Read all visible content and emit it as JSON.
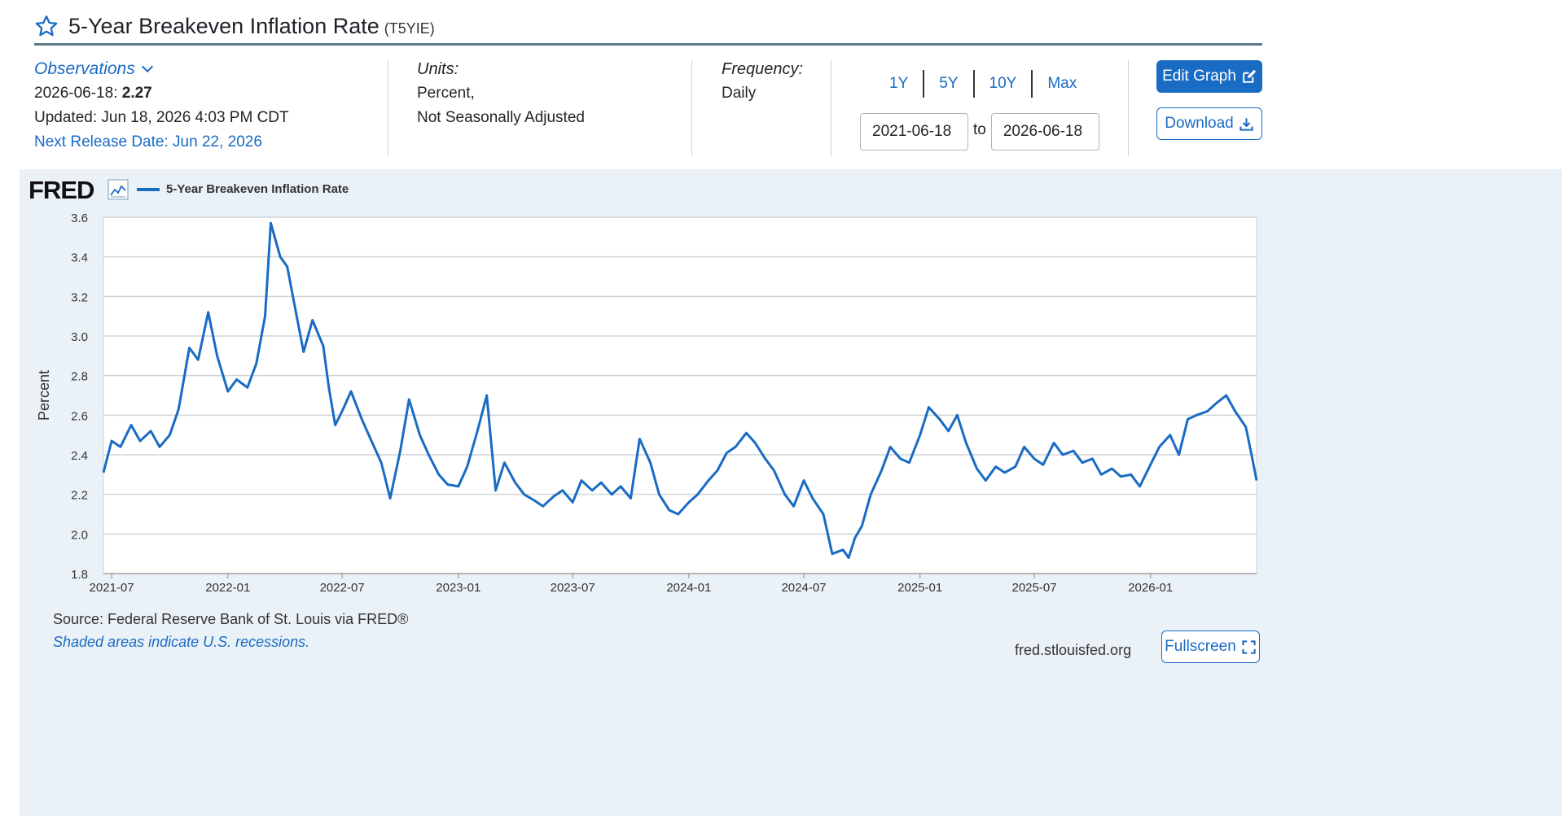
{
  "header": {
    "title": "5-Year Breakeven Inflation Rate",
    "series_id": "(T5YIE)"
  },
  "observations": {
    "toggle_label": "Observations",
    "date": "2026-06-18",
    "value": "2.27",
    "updated": "Updated: Jun 18, 2026 4:03 PM CDT",
    "next_release": "Next Release Date: Jun 22, 2026"
  },
  "units": {
    "label": "Units:",
    "line1": "Percent,",
    "line2": "Not Seasonally Adjusted"
  },
  "frequency": {
    "label": "Frequency:",
    "value": "Daily"
  },
  "range": {
    "buttons": [
      "1Y",
      "5Y",
      "10Y",
      "Max"
    ],
    "start": "2021-06-18",
    "to_label": "to",
    "end": "2026-06-18"
  },
  "actions": {
    "edit_graph": "Edit Graph",
    "download": "Download",
    "fullscreen": "Fullscreen"
  },
  "chart_panel": {
    "logo": "FRED",
    "source": "Source: Federal Reserve Bank of St. Louis via FRED®",
    "shaded_note": "Shaded areas indicate U.S. recessions.",
    "site": "fred.stlouisfed.org"
  },
  "colors": {
    "accent": "#1a6bc4",
    "series": "#1a6bc4",
    "panel_bg": "#eaf2f8",
    "header_rule": "#5d7a8a"
  },
  "chart_data": {
    "type": "line",
    "title": "",
    "ylabel": "Percent",
    "xlabel": "",
    "ylim": [
      1.8,
      3.6
    ],
    "y_ticks": [
      "1.8",
      "2.0",
      "2.2",
      "2.4",
      "2.6",
      "2.8",
      "3.0",
      "3.2",
      "3.4",
      "3.6"
    ],
    "x_ticks": [
      "2021-07",
      "2022-01",
      "2022-07",
      "2023-01",
      "2023-07",
      "2024-01",
      "2024-07",
      "2025-01",
      "2025-07",
      "2026-01"
    ],
    "xlim": [
      "2021-06-18",
      "2026-06-18"
    ],
    "grid": true,
    "legend": "top-left",
    "series": [
      {
        "name": "5-Year Breakeven Inflation Rate",
        "x": [
          "2021-06-18",
          "2021-07-01",
          "2021-07-15",
          "2021-08-01",
          "2021-08-15",
          "2021-09-01",
          "2021-09-15",
          "2021-10-01",
          "2021-10-15",
          "2021-11-01",
          "2021-11-15",
          "2021-12-01",
          "2021-12-15",
          "2022-01-01",
          "2022-01-15",
          "2022-02-01",
          "2022-02-15",
          "2022-03-01",
          "2022-03-10",
          "2022-03-25",
          "2022-04-05",
          "2022-04-20",
          "2022-05-01",
          "2022-05-15",
          "2022-06-01",
          "2022-06-10",
          "2022-06-20",
          "2022-07-01",
          "2022-07-15",
          "2022-08-01",
          "2022-08-15",
          "2022-09-01",
          "2022-09-15",
          "2022-10-01",
          "2022-10-15",
          "2022-11-01",
          "2022-11-15",
          "2022-12-01",
          "2022-12-15",
          "2023-01-01",
          "2023-01-15",
          "2023-02-01",
          "2023-02-15",
          "2023-03-01",
          "2023-03-15",
          "2023-04-01",
          "2023-04-15",
          "2023-05-01",
          "2023-05-15",
          "2023-06-01",
          "2023-06-15",
          "2023-07-01",
          "2023-07-15",
          "2023-08-01",
          "2023-08-15",
          "2023-09-01",
          "2023-09-15",
          "2023-10-01",
          "2023-10-15",
          "2023-11-01",
          "2023-11-15",
          "2023-12-01",
          "2023-12-15",
          "2024-01-01",
          "2024-01-15",
          "2024-02-01",
          "2024-02-15",
          "2024-03-01",
          "2024-03-15",
          "2024-04-01",
          "2024-04-15",
          "2024-05-01",
          "2024-05-15",
          "2024-06-01",
          "2024-06-15",
          "2024-07-01",
          "2024-07-15",
          "2024-08-01",
          "2024-08-15",
          "2024-09-01",
          "2024-09-10",
          "2024-09-20",
          "2024-10-01",
          "2024-10-15",
          "2024-11-01",
          "2024-11-15",
          "2024-12-01",
          "2024-12-15",
          "2025-01-01",
          "2025-01-15",
          "2025-02-01",
          "2025-02-15",
          "2025-03-01",
          "2025-03-15",
          "2025-04-01",
          "2025-04-15",
          "2025-05-01",
          "2025-05-15",
          "2025-06-01",
          "2025-06-15",
          "2025-07-01",
          "2025-07-15",
          "2025-08-01",
          "2025-08-15",
          "2025-09-01",
          "2025-09-15",
          "2025-10-01",
          "2025-10-15",
          "2025-11-01",
          "2025-11-15",
          "2025-12-01",
          "2025-12-15",
          "2026-01-01",
          "2026-01-15",
          "2026-02-01",
          "2026-02-15",
          "2026-03-01",
          "2026-03-15",
          "2026-04-01",
          "2026-04-15",
          "2026-05-01",
          "2026-05-15",
          "2026-06-01",
          "2026-06-10",
          "2026-06-18"
        ],
        "values": [
          2.31,
          2.47,
          2.44,
          2.55,
          2.47,
          2.52,
          2.44,
          2.5,
          2.63,
          2.94,
          2.88,
          3.12,
          2.9,
          2.72,
          2.78,
          2.74,
          2.86,
          3.1,
          3.57,
          3.4,
          3.35,
          3.1,
          2.92,
          3.08,
          2.95,
          2.74,
          2.55,
          2.62,
          2.72,
          2.58,
          2.48,
          2.36,
          2.18,
          2.42,
          2.68,
          2.5,
          2.4,
          2.3,
          2.25,
          2.24,
          2.34,
          2.53,
          2.7,
          2.22,
          2.36,
          2.26,
          2.2,
          2.17,
          2.14,
          2.19,
          2.22,
          2.16,
          2.27,
          2.22,
          2.26,
          2.2,
          2.24,
          2.18,
          2.48,
          2.36,
          2.2,
          2.12,
          2.1,
          2.16,
          2.2,
          2.27,
          2.32,
          2.41,
          2.44,
          2.51,
          2.46,
          2.38,
          2.32,
          2.2,
          2.14,
          2.27,
          2.18,
          2.1,
          1.9,
          1.92,
          1.88,
          1.98,
          2.04,
          2.2,
          2.32,
          2.44,
          2.38,
          2.36,
          2.5,
          2.64,
          2.58,
          2.52,
          2.6,
          2.46,
          2.33,
          2.27,
          2.34,
          2.31,
          2.34,
          2.44,
          2.38,
          2.35,
          2.46,
          2.4,
          2.42,
          2.36,
          2.38,
          2.3,
          2.33,
          2.29,
          2.3,
          2.24,
          2.35,
          2.44,
          2.5,
          2.4,
          2.58,
          2.6,
          2.62,
          2.66,
          2.7,
          2.62,
          2.54,
          2.4,
          2.27
        ]
      }
    ]
  }
}
